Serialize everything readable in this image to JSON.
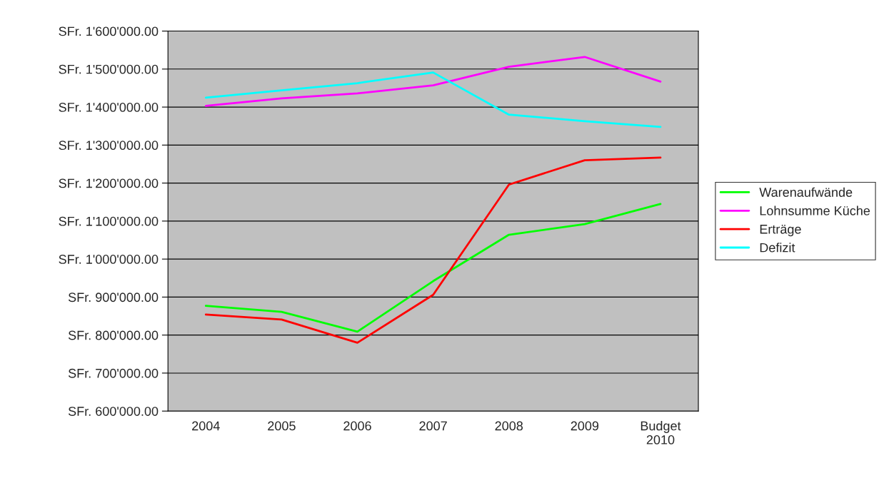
{
  "chart_data": {
    "type": "line",
    "categories": [
      "2004",
      "2005",
      "2006",
      "2007",
      "2008",
      "2009",
      "Budget\n2010"
    ],
    "series": [
      {
        "name": "Warenaufwände",
        "color": "#00ff00",
        "values": [
          877000,
          861000,
          809000,
          942000,
          1064000,
          1092000,
          1145000
        ]
      },
      {
        "name": "Lohnsumme Küche",
        "color": "#ff00ff",
        "values": [
          1403000,
          1423000,
          1436000,
          1457000,
          1506000,
          1532000,
          1467000
        ]
      },
      {
        "name": "Erträge",
        "color": "#ff0000",
        "values": [
          854000,
          841000,
          780000,
          906000,
          1196000,
          1260000,
          1267000
        ]
      },
      {
        "name": "Defizit",
        "color": "#00ffff",
        "values": [
          1425000,
          1444000,
          1463000,
          1491000,
          1380000,
          1363000,
          1348000
        ]
      }
    ],
    "ylim": [
      600000,
      1600000
    ],
    "yticks": [
      {
        "value": 600000,
        "label": "SFr. 600'000.00"
      },
      {
        "value": 700000,
        "label": "SFr. 700'000.00"
      },
      {
        "value": 800000,
        "label": "SFr. 800'000.00"
      },
      {
        "value": 900000,
        "label": "SFr. 900'000.00"
      },
      {
        "value": 1000000,
        "label": "SFr. 1'000'000.00"
      },
      {
        "value": 1100000,
        "label": "SFr. 1'100'000.00"
      },
      {
        "value": 1200000,
        "label": "SFr. 1'200'000.00"
      },
      {
        "value": 1300000,
        "label": "SFr. 1'300'000.00"
      },
      {
        "value": 1400000,
        "label": "SFr. 1'400'000.00"
      },
      {
        "value": 1500000,
        "label": "SFr. 1'500'000.00"
      },
      {
        "value": 1600000,
        "label": "SFr. 1'600'000.00"
      }
    ],
    "grid": "y",
    "legend": "right",
    "marker": "none",
    "line_style": "solid"
  }
}
